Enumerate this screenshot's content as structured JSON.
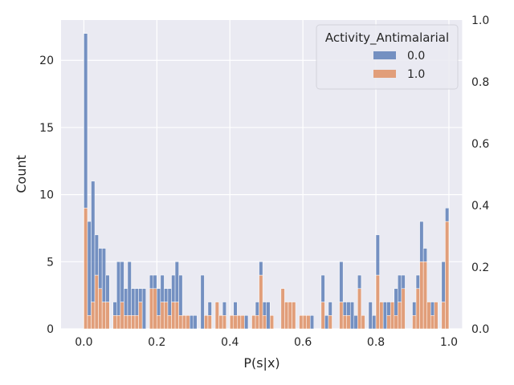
{
  "chart_data": {
    "type": "bar",
    "subtype": "stacked-histogram",
    "xlabel": "P(s|x)",
    "ylabel": "Count",
    "xlim": [
      -0.0625,
      1.0375
    ],
    "ylim": [
      0,
      23
    ],
    "bin_width": 0.01,
    "bin_start": 0.0,
    "x_ticks": [
      "0.0",
      "0.2",
      "0.4",
      "0.6",
      "0.8",
      "1.0"
    ],
    "x_tick_values": [
      0,
      0.2,
      0.4,
      0.6,
      0.8,
      1.0
    ],
    "y_ticks": [
      "0",
      "5",
      "10",
      "15",
      "20"
    ],
    "y_tick_values": [
      0,
      5,
      10,
      15,
      20
    ],
    "y2_ticks": [
      "0.0",
      "0.2",
      "0.4",
      "0.6",
      "0.8",
      "1.0"
    ],
    "y2_tick_values": [
      0,
      0.2,
      0.4,
      0.6,
      0.8,
      1.0
    ],
    "y2lim": [
      0,
      1
    ],
    "grid": true,
    "legend_title": "Activity_Antimalarial",
    "legend_position": "upper-right",
    "series": [
      {
        "name": "0.0",
        "color": "#4c72b0",
        "values": [
          13,
          7,
          9,
          3,
          3,
          4,
          2,
          0,
          1,
          4,
          3,
          2,
          4,
          2,
          2,
          1,
          3,
          0,
          1,
          1,
          2,
          2,
          1,
          2,
          2,
          3,
          3,
          0,
          0,
          1,
          1,
          0,
          4,
          0,
          1,
          0,
          0,
          0,
          1,
          0,
          0,
          1,
          0,
          0,
          1,
          0,
          0,
          1,
          1,
          1,
          2,
          0,
          0,
          0,
          0,
          0,
          0,
          0,
          0,
          0,
          0,
          0,
          1,
          0,
          0,
          2,
          1,
          1,
          0,
          0,
          3,
          1,
          1,
          2,
          1,
          1,
          0,
          0,
          2,
          1,
          3,
          0,
          2,
          1,
          0,
          2,
          2,
          1,
          0,
          0,
          1,
          1,
          3,
          1,
          0,
          1,
          0,
          0,
          3,
          1
        ]
      },
      {
        "name": "1.0",
        "color": "#dd8452",
        "values": [
          9,
          1,
          2,
          4,
          3,
          2,
          2,
          0,
          1,
          1,
          2,
          1,
          1,
          1,
          1,
          2,
          0,
          0,
          3,
          3,
          1,
          2,
          2,
          1,
          2,
          2,
          1,
          1,
          1,
          0,
          0,
          0,
          0,
          1,
          1,
          0,
          2,
          1,
          1,
          0,
          1,
          1,
          1,
          1,
          0,
          0,
          1,
          1,
          4,
          1,
          0,
          1,
          0,
          0,
          3,
          2,
          2,
          2,
          0,
          1,
          1,
          1,
          0,
          0,
          0,
          2,
          0,
          1,
          0,
          0,
          2,
          1,
          1,
          0,
          0,
          3,
          1,
          0,
          0,
          0,
          4,
          2,
          0,
          1,
          2,
          1,
          2,
          3,
          0,
          0,
          1,
          3,
          5,
          5,
          2,
          1,
          2,
          0,
          2,
          8
        ]
      }
    ]
  }
}
